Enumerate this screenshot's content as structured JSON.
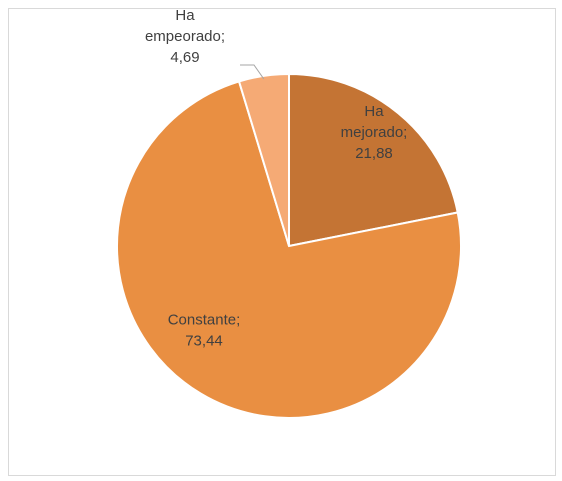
{
  "chart_data": {
    "type": "pie",
    "title": "",
    "start_angle_deg": 0,
    "direction": "clockwise",
    "slices": [
      {
        "label_lines": [
          "Ha",
          "mejorado;",
          "21,88"
        ],
        "value": 21.88,
        "color": "#c55a11",
        "fill": "#c47434",
        "text_color": "#404040"
      },
      {
        "label_lines": [
          "Constante;",
          "73,44"
        ],
        "value": 73.44,
        "color": "#e98f42",
        "fill": "#e98f42",
        "text_color": "#404040"
      },
      {
        "label_lines": [
          "Ha",
          "empeorado;",
          "4,69"
        ],
        "value": 4.69,
        "color": "#f5aa75",
        "fill": "#f5aa75",
        "text_color": "#404040"
      }
    ],
    "legend": "none"
  }
}
